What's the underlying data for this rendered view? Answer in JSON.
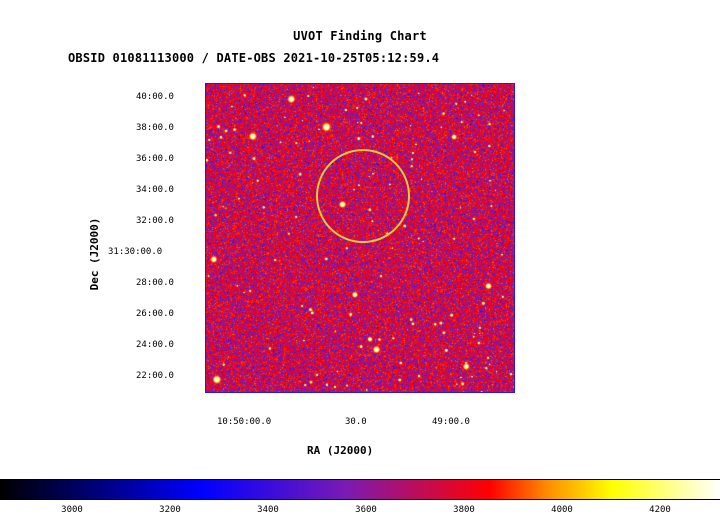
{
  "header": {
    "title": "UVOT Finding Chart",
    "subtitle": "OBSID 01081113000 / DATE-OBS 2021-10-25T05:12:59.4"
  },
  "axes": {
    "xlabel": "RA (J2000)",
    "ylabel": "Dec (J2000)",
    "ra_ticks": [
      "10:50:00.0",
      "30.0",
      "49:00.0"
    ],
    "dec_ticks": [
      "40:00.0",
      "38:00.0",
      "36:00.0",
      "34:00.0",
      "32:00.0",
      "31:30:00.0",
      "28:00.0",
      "26:00.0",
      "24:00.0",
      "22:00.0"
    ]
  },
  "colorbar": {
    "ticks": [
      "3000",
      "3200",
      "3400",
      "3600",
      "3800",
      "4000",
      "4200"
    ],
    "colors": [
      "#000000",
      "#0000ff",
      "#7a1ab4",
      "#ff0000",
      "#ff8c00",
      "#ffff00",
      "#ffffff"
    ]
  },
  "overlay": {
    "circle_color": "#e8c840",
    "frame_color": "#1a1aff"
  }
}
